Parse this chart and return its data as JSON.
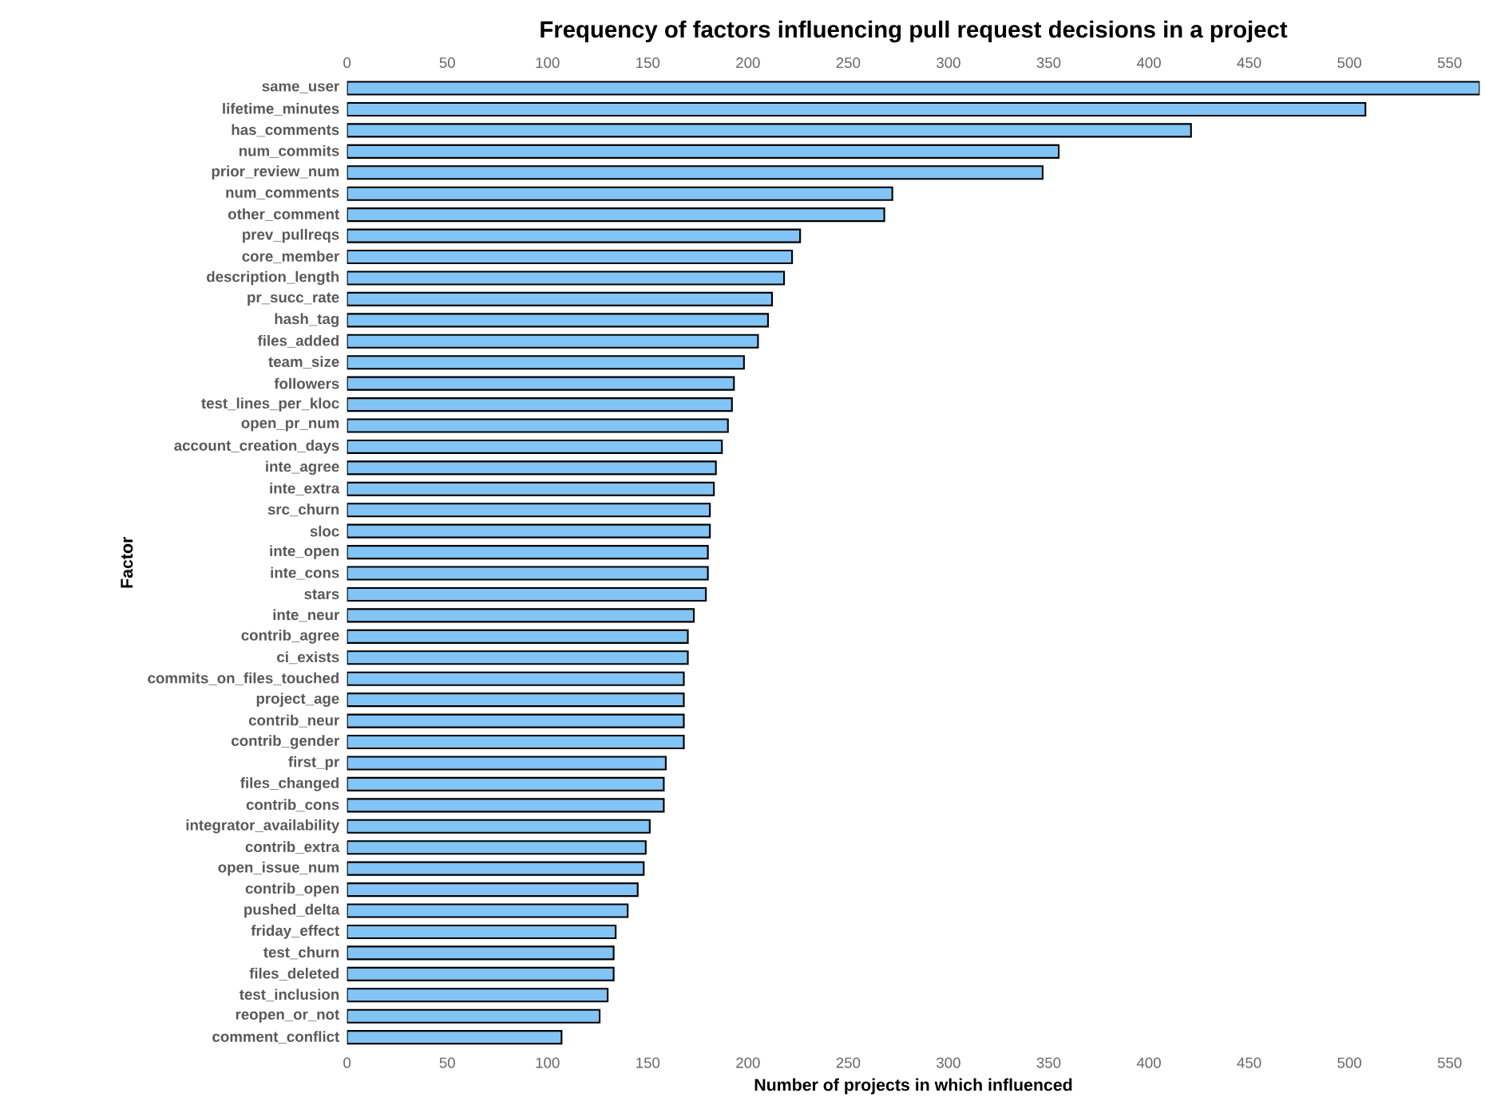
{
  "chart_data": {
    "type": "bar",
    "orientation": "horizontal",
    "title": "Frequency of factors influencing pull request decisions in a project",
    "xlabel": "Number of projects in which influenced",
    "ylabel": "Factor",
    "categories": [
      "same_user",
      "lifetime_minutes",
      "has_comments",
      "num_commits",
      "prior_review_num",
      "num_comments",
      "other_comment",
      "prev_pullreqs",
      "core_member",
      "description_length",
      "pr_succ_rate",
      "hash_tag",
      "files_added",
      "team_size",
      "followers",
      "test_lines_per_kloc",
      "open_pr_num",
      "account_creation_days",
      "inte_agree",
      "inte_extra",
      "src_churn",
      "sloc",
      "inte_open",
      "inte_cons",
      "stars",
      "inte_neur",
      "contrib_agree",
      "ci_exists",
      "commits_on_files_touched",
      "project_age",
      "contrib_neur",
      "contrib_gender",
      "first_pr",
      "files_changed",
      "contrib_cons",
      "integrator_availability",
      "contrib_extra",
      "open_issue_num",
      "contrib_open",
      "pushed_delta",
      "friday_effect",
      "test_churn",
      "files_deleted",
      "test_inclusion",
      "reopen_or_not",
      "comment_conflict"
    ],
    "values": [
      565,
      508,
      421,
      355,
      347,
      272,
      268,
      226,
      222,
      218,
      212,
      210,
      205,
      198,
      193,
      192,
      190,
      187,
      184,
      183,
      181,
      181,
      180,
      180,
      179,
      173,
      170,
      170,
      168,
      168,
      168,
      168,
      159,
      158,
      158,
      151,
      149,
      148,
      145,
      140,
      134,
      133,
      133,
      130,
      126,
      107
    ],
    "color": "#82c4f5",
    "xlim": [
      0,
      565
    ],
    "xticks": [
      0,
      50,
      100,
      150,
      200,
      250,
      300,
      350,
      400,
      450,
      500,
      550
    ],
    "x2lim": [
      0,
      565
    ],
    "x2ticks": [
      0,
      50,
      100,
      150,
      200,
      250,
      300,
      350,
      400,
      450,
      500,
      550
    ]
  }
}
